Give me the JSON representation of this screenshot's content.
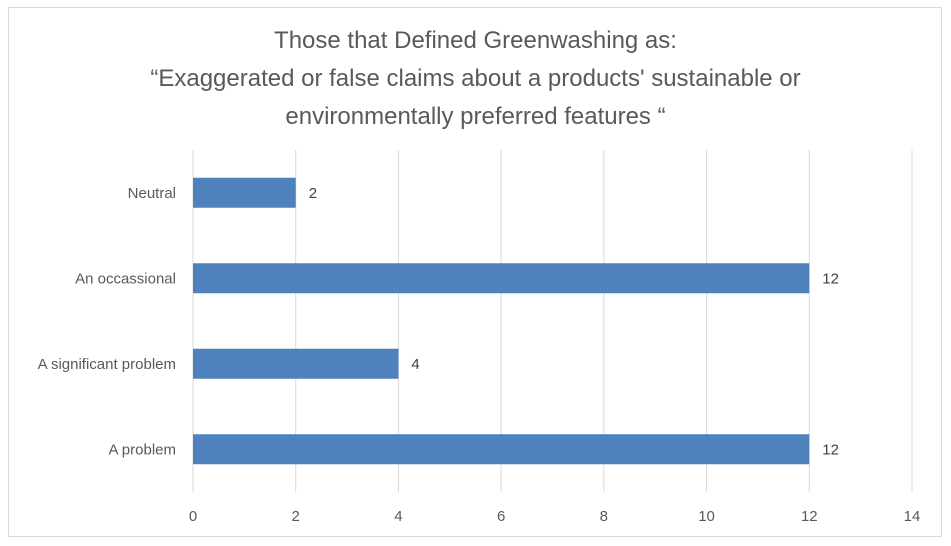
{
  "chart_data": {
    "type": "bar",
    "orientation": "horizontal",
    "title_lines": [
      "Those that Defined Greenwashing as:",
      "“Exaggerated or false claims about a products' sustainable or",
      "environmentally preferred features “"
    ],
    "categories": [
      "Neutral",
      "An occassional",
      "A significant problem",
      "A problem"
    ],
    "values": [
      2,
      12,
      4,
      12
    ],
    "xlim": [
      0,
      14
    ],
    "xticks": [
      0,
      2,
      4,
      6,
      8,
      10,
      12,
      14
    ],
    "grid": true,
    "legend": "none",
    "data_labels": true,
    "bar_color": "#4f81bd",
    "gridline_color": "#d9d9d9"
  }
}
